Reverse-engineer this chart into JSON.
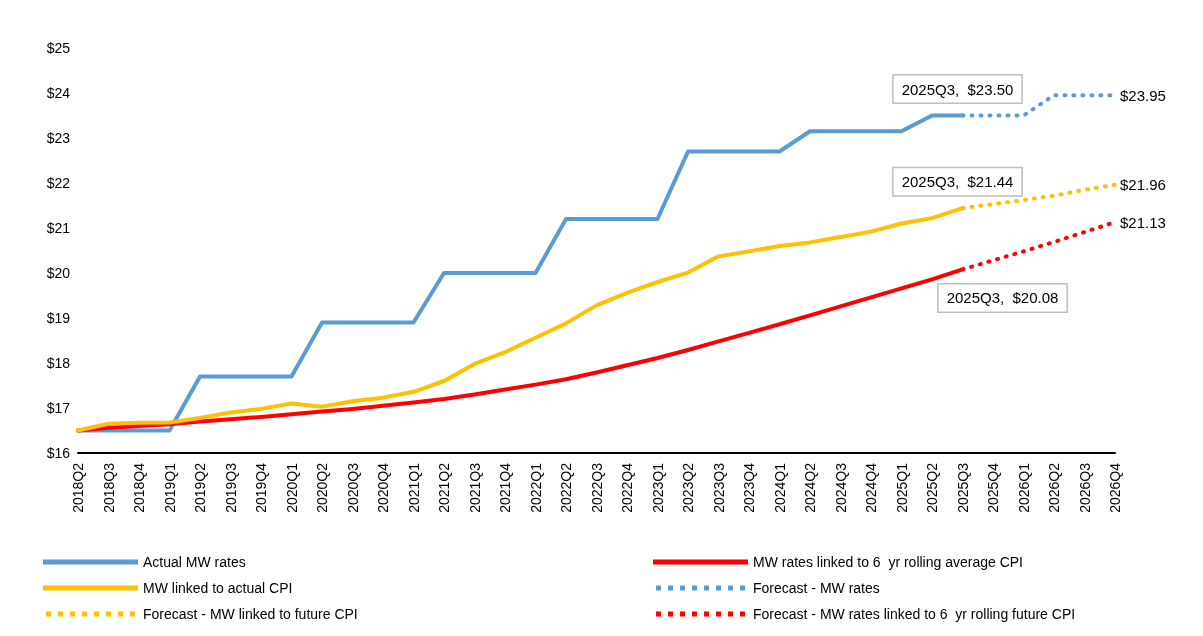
{
  "chart_data": {
    "type": "line",
    "categories": [
      "2018Q2",
      "2018Q3",
      "2018Q4",
      "2019Q1",
      "2019Q2",
      "2019Q3",
      "2019Q4",
      "2020Q1",
      "2020Q2",
      "2020Q3",
      "2020Q4",
      "2021Q1",
      "2021Q2",
      "2021Q3",
      "2021Q4",
      "2022Q1",
      "2022Q2",
      "2022Q3",
      "2022Q4",
      "2023Q1",
      "2023Q2",
      "2023Q3",
      "2023Q4",
      "2024Q1",
      "2024Q2",
      "2024Q3",
      "2024Q4",
      "2025Q1",
      "2025Q2",
      "2025Q3",
      "2025Q4",
      "2026Q1",
      "2026Q2",
      "2026Q3",
      "2026Q4"
    ],
    "series": [
      {
        "name": "Actual MW rates",
        "color": "#5b9bd5",
        "line_style": "solid",
        "values": [
          16.5,
          16.5,
          16.5,
          16.5,
          17.7,
          17.7,
          17.7,
          17.7,
          18.9,
          18.9,
          18.9,
          18.9,
          20.0,
          20.0,
          20.0,
          20.0,
          21.2,
          21.2,
          21.2,
          21.2,
          22.7,
          22.7,
          22.7,
          22.7,
          23.15,
          23.15,
          23.15,
          23.15,
          23.5,
          23.5,
          null,
          null,
          null,
          null,
          null
        ]
      },
      {
        "name": "MW rates linked to 6  yr rolling average CPI",
        "color": "#ff0000",
        "line_style": "solid",
        "values": [
          16.5,
          16.56,
          16.6,
          16.64,
          16.7,
          16.75,
          16.8,
          16.86,
          16.92,
          16.98,
          17.05,
          17.12,
          17.2,
          17.3,
          17.41,
          17.52,
          17.64,
          17.79,
          17.95,
          18.11,
          18.29,
          18.48,
          18.67,
          18.86,
          19.06,
          19.26,
          19.46,
          19.66,
          19.86,
          20.08,
          null,
          null,
          null,
          null,
          null
        ]
      },
      {
        "name": "MW linked to actual CPI",
        "color": "#ffc000",
        "line_style": "solid",
        "values": [
          16.5,
          16.65,
          16.67,
          16.68,
          16.78,
          16.9,
          16.98,
          17.1,
          17.03,
          17.15,
          17.23,
          17.36,
          17.6,
          17.98,
          18.24,
          18.56,
          18.88,
          19.28,
          19.56,
          19.8,
          20.01,
          20.37,
          20.48,
          20.6,
          20.68,
          20.8,
          20.92,
          21.1,
          21.22,
          21.44,
          null,
          null,
          null,
          null,
          null
        ]
      },
      {
        "name": "Forecast - MW rates",
        "color": "#5b9bd5",
        "line_style": "dotted",
        "values": [
          null,
          null,
          null,
          null,
          null,
          null,
          null,
          null,
          null,
          null,
          null,
          null,
          null,
          null,
          null,
          null,
          null,
          null,
          null,
          null,
          null,
          null,
          null,
          null,
          null,
          null,
          null,
          null,
          null,
          23.5,
          23.5,
          23.5,
          23.95,
          23.95,
          23.95
        ],
        "value_labels": [
          null,
          null,
          null,
          null,
          null,
          null,
          null,
          null,
          null,
          null,
          null,
          null,
          null,
          null,
          null,
          null,
          null,
          null,
          null,
          null,
          null,
          null,
          null,
          null,
          null,
          null,
          null,
          null,
          null,
          null,
          null,
          null,
          null,
          null,
          "$23.95"
        ]
      },
      {
        "name": "Forecast - MW linked to future CPI",
        "color": "#ffc000",
        "line_style": "dotted",
        "values": [
          null,
          null,
          null,
          null,
          null,
          null,
          null,
          null,
          null,
          null,
          null,
          null,
          null,
          null,
          null,
          null,
          null,
          null,
          null,
          null,
          null,
          null,
          null,
          null,
          null,
          null,
          null,
          null,
          null,
          21.44,
          21.53,
          21.62,
          21.72,
          21.85,
          21.96
        ],
        "value_labels": [
          null,
          null,
          null,
          null,
          null,
          null,
          null,
          null,
          null,
          null,
          null,
          null,
          null,
          null,
          null,
          null,
          null,
          null,
          null,
          null,
          null,
          null,
          null,
          null,
          null,
          null,
          null,
          null,
          null,
          null,
          null,
          null,
          null,
          null,
          "$21.96"
        ]
      },
      {
        "name": "Forecast - MW rates linked to 6  yr rolling future CPI",
        "color": "#ff0000",
        "line_style": "dotted",
        "values": [
          null,
          null,
          null,
          null,
          null,
          null,
          null,
          null,
          null,
          null,
          null,
          null,
          null,
          null,
          null,
          null,
          null,
          null,
          null,
          null,
          null,
          null,
          null,
          null,
          null,
          null,
          null,
          null,
          null,
          20.08,
          20.28,
          20.48,
          20.69,
          20.91,
          21.13
        ],
        "value_labels": [
          null,
          null,
          null,
          null,
          null,
          null,
          null,
          null,
          null,
          null,
          null,
          null,
          null,
          null,
          null,
          null,
          null,
          null,
          null,
          null,
          null,
          null,
          null,
          null,
          null,
          null,
          null,
          null,
          null,
          null,
          null,
          null,
          null,
          null,
          "$21.13"
        ]
      }
    ],
    "ylim": [
      16,
      25
    ],
    "yticks": [
      {
        "value": 16,
        "label": "$16"
      },
      {
        "value": 17,
        "label": "$17"
      },
      {
        "value": 18,
        "label": "$18"
      },
      {
        "value": 19,
        "label": "$19"
      },
      {
        "value": 20,
        "label": "$20"
      },
      {
        "value": 21,
        "label": "$21"
      },
      {
        "value": 22,
        "label": "$22"
      },
      {
        "value": 23,
        "label": "$23"
      },
      {
        "value": 24,
        "label": "$24"
      },
      {
        "value": 25,
        "label": "$25"
      }
    ],
    "annotations": [
      {
        "text": "2025Q3,  $23.50",
        "x": "2025Q3",
        "y": 23.5
      },
      {
        "text": "2025Q3,  $21.44",
        "x": "2025Q3",
        "y": 21.44
      },
      {
        "text": "2025Q3,  $20.08",
        "x": "2025Q3",
        "y": 20.08
      }
    ],
    "grid": false,
    "legend": "bottom",
    "marker": "none"
  }
}
